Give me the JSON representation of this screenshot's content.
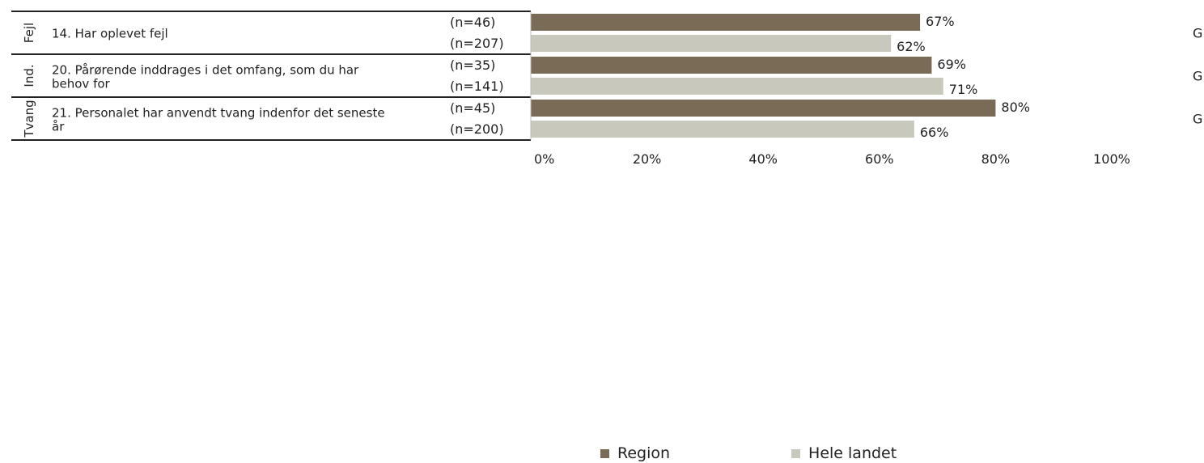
{
  "chart_data": {
    "type": "bar",
    "orientation": "horizontal",
    "groups": [
      {
        "category_label": "Fejl",
        "question": "14. Har oplevet fejl",
        "question_lines": [
          "14. Har oplevet fejl"
        ],
        "n": [
          "(n=46)",
          "(n=207)"
        ],
        "values": [
          67,
          62
        ],
        "value_labels": [
          "67%",
          "62%"
        ],
        "marker": "G"
      },
      {
        "category_label": "Ind.",
        "question": "20. Pårørende inddrages i det omfang, som du har behov for",
        "question_lines": [
          "20. Pårørende inddrages i det omfang, som du har",
          "behov for"
        ],
        "n": [
          "(n=35)",
          "(n=141)"
        ],
        "values": [
          69,
          71
        ],
        "value_labels": [
          "69%",
          "71%"
        ],
        "marker": "G"
      },
      {
        "category_label": "Tvang",
        "question": "21. Personalet har anvendt tvang indenfor det seneste år",
        "question_lines": [
          "21. Personalet har anvendt tvang indenfor det seneste",
          "år"
        ],
        "n": [
          "(n=45)",
          "(n=200)"
        ],
        "values": [
          80,
          66
        ],
        "value_labels": [
          "80%",
          "66%"
        ],
        "marker": "G"
      }
    ],
    "series": [
      {
        "name": "Region",
        "color": "#7a6b57"
      },
      {
        "name": "Hele landet",
        "color": "#c8c9bc"
      }
    ],
    "xlim": [
      0,
      100
    ],
    "xticks": [
      0,
      20,
      40,
      60,
      80,
      100
    ],
    "xtick_labels": [
      "0%",
      "20%",
      "40%",
      "60%",
      "80%",
      "100%"
    ],
    "grid": false,
    "legend_position": "bottom"
  },
  "legend": {
    "items": [
      {
        "label": "Region",
        "color": "#7a6b57"
      },
      {
        "label": "Hele landet",
        "color": "#c8c9bc"
      }
    ]
  }
}
